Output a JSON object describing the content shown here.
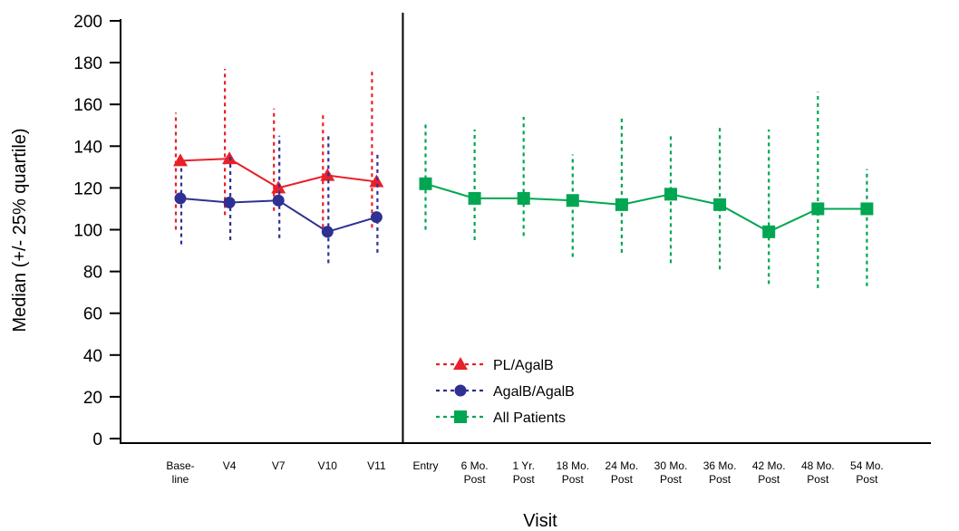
{
  "chart_data": {
    "type": "line",
    "xlabel": "Visit",
    "ylabel": "Median (+/- 25% quartile)",
    "ylim": [
      0,
      200
    ],
    "yticks": [
      0,
      20,
      40,
      60,
      80,
      100,
      120,
      140,
      160,
      180,
      200
    ],
    "grid": false,
    "legend_position": "bottom-center",
    "categories": [
      [
        "Base-",
        "line"
      ],
      [
        "V4"
      ],
      [
        "V7"
      ],
      [
        "V10"
      ],
      [
        "V11"
      ],
      [
        "Entry"
      ],
      [
        "6 Mo.",
        "Post"
      ],
      [
        "1 Yr.",
        "Post"
      ],
      [
        "18 Mo.",
        "Post"
      ],
      [
        "24 Mo.",
        "Post"
      ],
      [
        "30 Mo.",
        "Post"
      ],
      [
        "36 Mo.",
        "Post"
      ],
      [
        "42 Mo.",
        "Post"
      ],
      [
        "48 Mo.",
        "Post"
      ],
      [
        "54 Mo.",
        "Post"
      ]
    ],
    "series": [
      {
        "name": "PL/AgalB",
        "color": "#e8202a",
        "marker": "triangle",
        "points": [
          {
            "cat": 0,
            "median": 133,
            "q1": 100,
            "q3": 156
          },
          {
            "cat": 1,
            "median": 134,
            "q1": 107,
            "q3": 177
          },
          {
            "cat": 2,
            "median": 120,
            "q1": 109,
            "q3": 158
          },
          {
            "cat": 3,
            "median": 126,
            "q1": 101,
            "q3": 155
          },
          {
            "cat": 4,
            "median": 123,
            "q1": 101,
            "q3": 176
          }
        ]
      },
      {
        "name": "AgalB/AgalB",
        "color": "#2e3192",
        "marker": "circle",
        "points": [
          {
            "cat": 0,
            "median": 115,
            "q1": 93,
            "q3": 130
          },
          {
            "cat": 1,
            "median": 113,
            "q1": 95,
            "q3": 136
          },
          {
            "cat": 2,
            "median": 114,
            "q1": 96,
            "q3": 145
          },
          {
            "cat": 3,
            "median": 99,
            "q1": 84,
            "q3": 146
          },
          {
            "cat": 4,
            "median": 106,
            "q1": 89,
            "q3": 137
          }
        ]
      },
      {
        "name": "All Patients",
        "color": "#00a651",
        "marker": "square",
        "points": [
          {
            "cat": 5,
            "median": 122,
            "q1": 100,
            "q3": 151
          },
          {
            "cat": 6,
            "median": 115,
            "q1": 95,
            "q3": 148
          },
          {
            "cat": 7,
            "median": 115,
            "q1": 97,
            "q3": 154
          },
          {
            "cat": 8,
            "median": 114,
            "q1": 87,
            "q3": 136
          },
          {
            "cat": 9,
            "median": 112,
            "q1": 89,
            "q3": 154
          },
          {
            "cat": 10,
            "median": 117,
            "q1": 84,
            "q3": 145
          },
          {
            "cat": 11,
            "median": 112,
            "q1": 81,
            "q3": 150
          },
          {
            "cat": 12,
            "median": 99,
            "q1": 74,
            "q3": 148
          },
          {
            "cat": 13,
            "median": 110,
            "q1": 72,
            "q3": 166
          },
          {
            "cat": 14,
            "median": 110,
            "q1": 73,
            "q3": 129
          }
        ]
      }
    ],
    "divider_between": [
      4,
      5
    ]
  }
}
